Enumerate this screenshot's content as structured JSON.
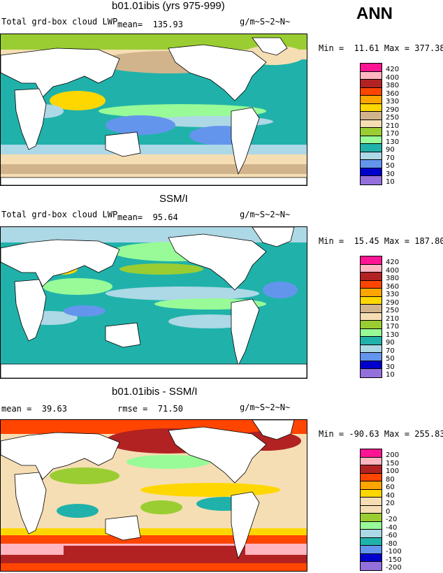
{
  "ann_label": "ANN",
  "panels": [
    {
      "title": "b01.01ibis (yrs 975-999)",
      "left_label": "Total grd-box cloud LWP",
      "stat1": "mean=  135.93",
      "stat2": "",
      "units": "g/m~S~2~N~",
      "minmax": "Min =  11.61 Max = 377.38",
      "legend_values": [
        "420",
        "400",
        "380",
        "360",
        "330",
        "290",
        "250",
        "210",
        "170",
        "130",
        "90",
        "70",
        "50",
        "30",
        "10"
      ],
      "legend_colors": [
        "#ff1493",
        "#ffb6c1",
        "#b22222",
        "#ff4500",
        "#ffa500",
        "#ffd700",
        "#d2b48c",
        "#f5deb3",
        "#9acd32",
        "#98fb98",
        "#20b2aa",
        "#add8e6",
        "#6495ed",
        "#0000cd",
        "#9370db"
      ]
    },
    {
      "title": "SSM/I",
      "left_label": "Total grd-box cloud LWP",
      "stat1": "mean=  95.64",
      "stat2": "",
      "units": "g/m~S~2~N~",
      "minmax": "Min =  15.45 Max = 187.80",
      "legend_values": [
        "420",
        "400",
        "380",
        "360",
        "330",
        "290",
        "250",
        "210",
        "170",
        "130",
        "90",
        "70",
        "50",
        "30",
        "10"
      ],
      "legend_colors": [
        "#ff1493",
        "#ffb6c1",
        "#b22222",
        "#ff4500",
        "#ffa500",
        "#ffd700",
        "#d2b48c",
        "#f5deb3",
        "#9acd32",
        "#98fb98",
        "#20b2aa",
        "#add8e6",
        "#6495ed",
        "#0000cd",
        "#9370db"
      ]
    },
    {
      "title": "b01.01ibis - SSM/I",
      "left_label": "mean =  39.63",
      "stat1": "",
      "stat2": "rmse =  71.50",
      "units": "g/m~S~2~N~",
      "minmax": "Min = -90.63 Max = 255.83",
      "legend_values": [
        "200",
        "150",
        "100",
        "80",
        "60",
        "40",
        "20",
        "0",
        "-20",
        "-40",
        "-60",
        "-80",
        "-100",
        "-150",
        "-200"
      ],
      "legend_colors": [
        "#ff1493",
        "#ffb6c1",
        "#b22222",
        "#ff4500",
        "#ffa500",
        "#ffd700",
        "#f5deb3",
        "#f5deb3",
        "#9acd32",
        "#98fb98",
        "#add8e6",
        "#20b2aa",
        "#6495ed",
        "#0000cd",
        "#9370db"
      ]
    }
  ]
}
